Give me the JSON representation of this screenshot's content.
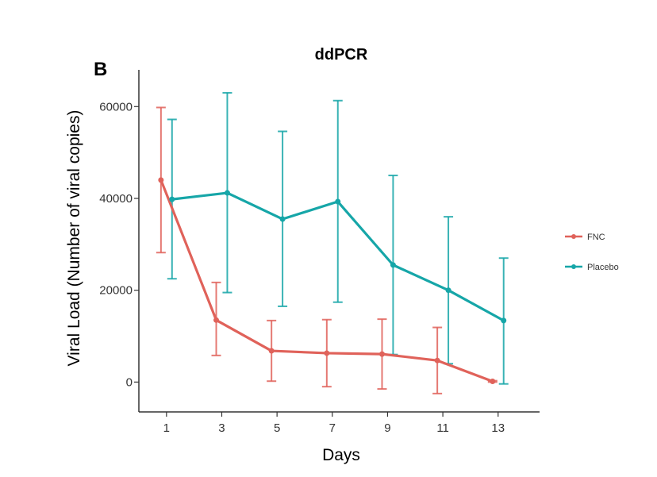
{
  "chart_data": {
    "type": "line",
    "panel_label": "B",
    "title": "ddPCR",
    "xlabel": "Days",
    "ylabel": "Viral Load (Number of viral copies)",
    "x_ticks": [
      1,
      3,
      5,
      7,
      9,
      11,
      13
    ],
    "y_ticks": [
      0,
      20000,
      40000,
      60000
    ],
    "y_tick_labels": [
      "0",
      "20000",
      "40000",
      "60000"
    ],
    "ylim": [
      -6500,
      68000
    ],
    "xlim": [
      0.0,
      14.5
    ],
    "grid": false,
    "legend_position": "right",
    "series": [
      {
        "name": "FNC",
        "color": "#e0625a",
        "x": [
          0.8,
          2.8,
          4.8,
          6.8,
          8.8,
          10.8,
          12.8
        ],
        "values": [
          44000,
          13500,
          6800,
          6300,
          6100,
          4700,
          150
        ],
        "error_low": [
          28200,
          5800,
          200,
          -1000,
          -1500,
          -2500,
          0
        ],
        "error_high": [
          59800,
          21700,
          13400,
          13600,
          13700,
          11900,
          300
        ]
      },
      {
        "name": "Placebo",
        "color": "#16a6a8",
        "x": [
          1.2,
          3.2,
          5.2,
          7.2,
          9.2,
          11.2,
          13.2
        ],
        "values": [
          39800,
          41200,
          35500,
          39300,
          25500,
          20000,
          13400
        ],
        "error_low": [
          22500,
          19500,
          16500,
          17400,
          6000,
          4000,
          -400
        ],
        "error_high": [
          57200,
          63000,
          54600,
          61300,
          45000,
          36000,
          27000
        ]
      }
    ]
  }
}
